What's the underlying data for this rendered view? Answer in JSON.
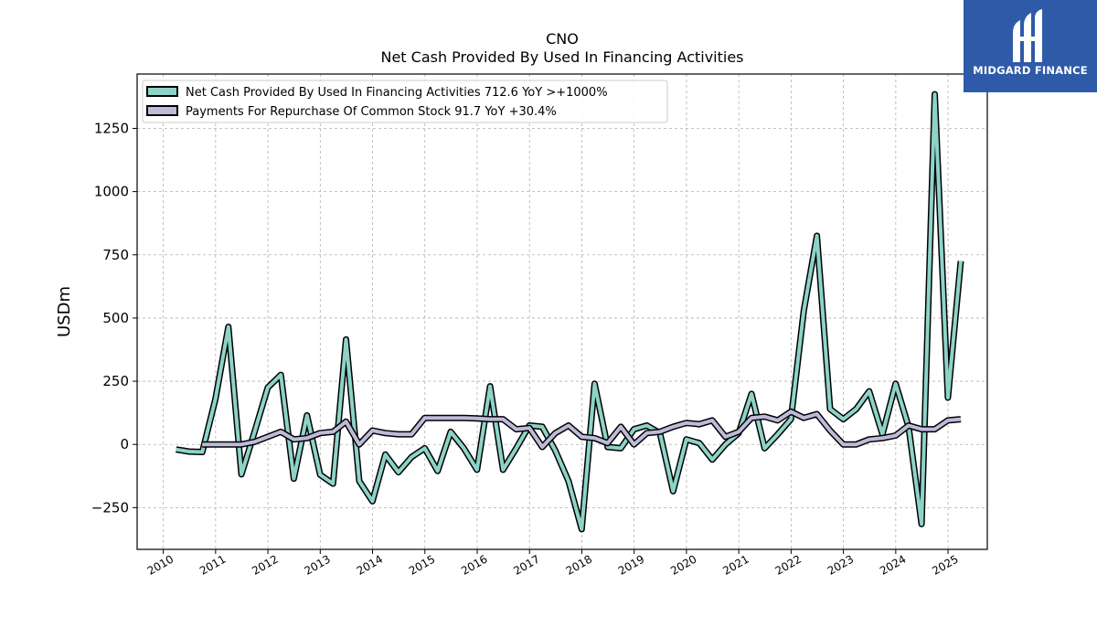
{
  "chart_data": {
    "type": "line",
    "title": "CNO",
    "subtitle": "Net Cash Provided By Used In Financing Activities",
    "xlabel": "",
    "ylabel": "USDm",
    "xlim": [
      2009.5,
      2025.75
    ],
    "ylim": [
      -415,
      1465
    ],
    "yticks": [
      -250,
      0,
      250,
      500,
      750,
      1000,
      1250
    ],
    "ytick_labels": [
      "−250",
      "0",
      "250",
      "500",
      "750",
      "1000",
      "1250"
    ],
    "xticks": [
      2010,
      2011,
      2012,
      2013,
      2014,
      2015,
      2016,
      2017,
      2018,
      2019,
      2020,
      2021,
      2022,
      2023,
      2024,
      2025
    ],
    "xtick_labels": [
      "2010",
      "2011",
      "2012",
      "2013",
      "2014",
      "2015",
      "2016",
      "2017",
      "2018",
      "2019",
      "2020",
      "2021",
      "2022",
      "2023",
      "2024",
      "2025"
    ],
    "grid": true,
    "legend_position": "top-left",
    "series": [
      {
        "name": "Net Cash Provided By Used In Financing Activities",
        "legend_label": "Net Cash Provided By Used In Financing Activities  712.6 YoY >+1000%",
        "color": "#8dd3c7",
        "points": [
          [
            "2010-03-31",
            -20
          ],
          [
            "2010-06-30",
            -28
          ],
          [
            "2010-09-30",
            -30
          ],
          [
            "2010-12-31",
            180
          ],
          [
            "2011-03-31",
            465
          ],
          [
            "2011-06-30",
            -118
          ],
          [
            "2011-09-30",
            50
          ],
          [
            "2011-12-31",
            225
          ],
          [
            "2012-03-31",
            275
          ],
          [
            "2012-06-30",
            -135
          ],
          [
            "2012-09-30",
            115
          ],
          [
            "2012-12-31",
            -120
          ],
          [
            "2013-03-31",
            -155
          ],
          [
            "2013-06-30",
            415
          ],
          [
            "2013-09-30",
            -145
          ],
          [
            "2013-12-31",
            -225
          ],
          [
            "2014-03-31",
            -40
          ],
          [
            "2014-06-30",
            -110
          ],
          [
            "2014-09-30",
            -50
          ],
          [
            "2014-12-31",
            -15
          ],
          [
            "2015-03-31",
            -105
          ],
          [
            "2015-06-30",
            50
          ],
          [
            "2015-09-30",
            -15
          ],
          [
            "2015-12-31",
            -100
          ],
          [
            "2016-03-31",
            230
          ],
          [
            "2016-06-30",
            -100
          ],
          [
            "2016-09-30",
            -15
          ],
          [
            "2016-12-31",
            75
          ],
          [
            "2017-03-31",
            70
          ],
          [
            "2017-06-30",
            -25
          ],
          [
            "2017-09-30",
            -145
          ],
          [
            "2017-12-31",
            -335
          ],
          [
            "2018-03-31",
            240
          ],
          [
            "2018-06-30",
            -10
          ],
          [
            "2018-09-30",
            -15
          ],
          [
            "2018-12-31",
            60
          ],
          [
            "2019-03-31",
            75
          ],
          [
            "2019-06-30",
            45
          ],
          [
            "2019-09-30",
            -185
          ],
          [
            "2019-12-31",
            20
          ],
          [
            "2020-03-31",
            5
          ],
          [
            "2020-06-30",
            -60
          ],
          [
            "2020-09-30",
            0
          ],
          [
            "2020-12-31",
            45
          ],
          [
            "2021-03-31",
            200
          ],
          [
            "2021-06-30",
            -15
          ],
          [
            "2021-09-30",
            40
          ],
          [
            "2021-12-31",
            100
          ],
          [
            "2022-03-31",
            530
          ],
          [
            "2022-06-30",
            825
          ],
          [
            "2022-09-30",
            140
          ],
          [
            "2022-12-31",
            100
          ],
          [
            "2023-03-31",
            140
          ],
          [
            "2023-06-30",
            210
          ],
          [
            "2023-09-30",
            40
          ],
          [
            "2023-12-31",
            240
          ],
          [
            "2024-03-31",
            70
          ],
          [
            "2024-06-30",
            -315
          ],
          [
            "2024-09-30",
            1385
          ],
          [
            "2024-12-31",
            185
          ],
          [
            "2025-03-31",
            725
          ]
        ]
      },
      {
        "name": "Payments For Repurchase Of Common Stock",
        "legend_label": "Payments For Repurchase Of Common Stock  91.7 YoY +30.4%",
        "color": "#bebada",
        "points": [
          [
            "2010-09-30",
            0
          ],
          [
            "2010-12-31",
            0
          ],
          [
            "2011-03-31",
            0
          ],
          [
            "2011-06-30",
            0
          ],
          [
            "2011-09-30",
            10
          ],
          [
            "2011-12-31",
            30
          ],
          [
            "2012-03-31",
            50
          ],
          [
            "2012-06-30",
            20
          ],
          [
            "2012-09-30",
            25
          ],
          [
            "2012-12-31",
            45
          ],
          [
            "2013-03-31",
            50
          ],
          [
            "2013-06-30",
            90
          ],
          [
            "2013-09-30",
            0
          ],
          [
            "2013-12-31",
            55
          ],
          [
            "2014-03-31",
            45
          ],
          [
            "2014-06-30",
            40
          ],
          [
            "2014-09-30",
            40
          ],
          [
            "2014-12-31",
            105
          ],
          [
            "2015-03-31",
            105
          ],
          [
            "2015-06-30",
            105
          ],
          [
            "2015-09-30",
            105
          ],
          [
            "2015-12-31",
            103
          ],
          [
            "2016-03-31",
            100
          ],
          [
            "2016-06-30",
            100
          ],
          [
            "2016-09-30",
            60
          ],
          [
            "2016-12-31",
            65
          ],
          [
            "2017-03-31",
            -10
          ],
          [
            "2017-06-30",
            45
          ],
          [
            "2017-09-30",
            75
          ],
          [
            "2017-12-31",
            30
          ],
          [
            "2018-03-31",
            25
          ],
          [
            "2018-06-30",
            5
          ],
          [
            "2018-09-30",
            70
          ],
          [
            "2018-12-31",
            0
          ],
          [
            "2019-03-31",
            45
          ],
          [
            "2019-06-30",
            50
          ],
          [
            "2019-09-30",
            70
          ],
          [
            "2019-12-31",
            85
          ],
          [
            "2020-03-31",
            80
          ],
          [
            "2020-06-30",
            95
          ],
          [
            "2020-09-30",
            30
          ],
          [
            "2020-12-31",
            50
          ],
          [
            "2021-03-31",
            105
          ],
          [
            "2021-06-30",
            110
          ],
          [
            "2021-09-30",
            95
          ],
          [
            "2021-12-31",
            130
          ],
          [
            "2022-03-31",
            105
          ],
          [
            "2022-06-30",
            120
          ],
          [
            "2022-09-30",
            55
          ],
          [
            "2022-12-31",
            0
          ],
          [
            "2023-03-31",
            0
          ],
          [
            "2023-06-30",
            20
          ],
          [
            "2023-09-30",
            25
          ],
          [
            "2023-12-31",
            35
          ],
          [
            "2024-03-31",
            75
          ],
          [
            "2024-06-30",
            60
          ],
          [
            "2024-09-30",
            60
          ],
          [
            "2024-12-31",
            95
          ],
          [
            "2025-03-31",
            100
          ]
        ]
      }
    ]
  },
  "logo": {
    "text": "MIDGARD FINANCE",
    "color": "#2f5aa8"
  }
}
